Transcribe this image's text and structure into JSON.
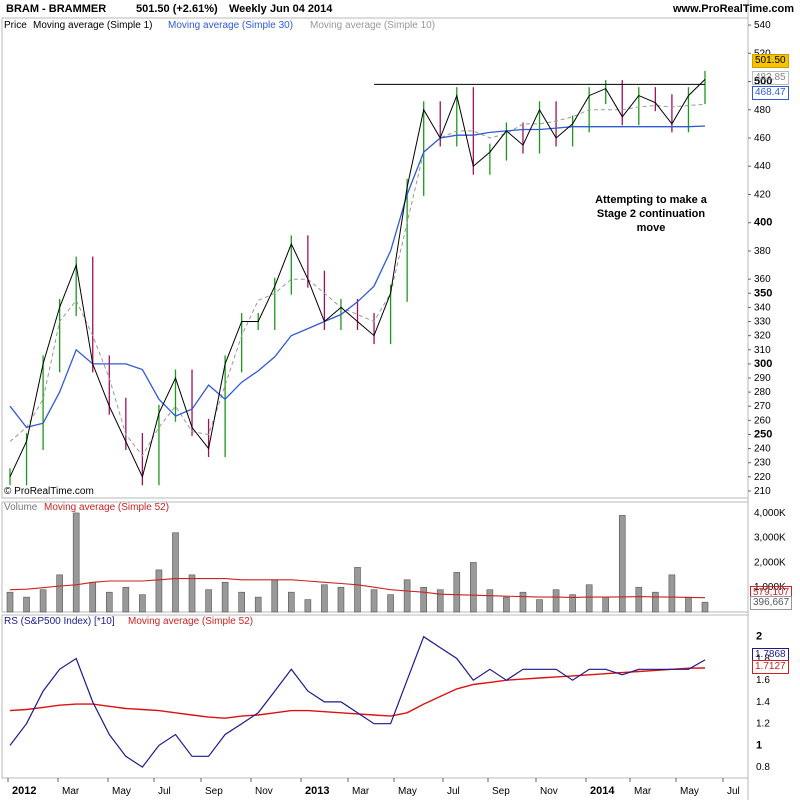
{
  "header": {
    "symbol": "BRAM - BRAMMER",
    "quote": "501.50 (+2.61%)",
    "period": "Weekly",
    "date": "Jun 04 2014",
    "site": "www.ProRealTime.com"
  },
  "price_panel": {
    "legend": [
      "Price",
      "Moving average (Simple 1)",
      "Moving average (Simple 30)",
      "Moving average (Simple 10)"
    ],
    "copyright": "© ProRealTime.com",
    "annotation": [
      "Attempting to make a",
      "Stage 2 continuation",
      "move"
    ],
    "badges": [
      {
        "text": "501.50",
        "bg": "#f5c400",
        "fg": "#000000"
      },
      {
        "text": "483.85",
        "bg": "#ffffff",
        "fg": "#888888"
      },
      {
        "text": "468.47",
        "bg": "#ffffff",
        "fg": "#2f5bd6"
      }
    ]
  },
  "volume_panel": {
    "legend": [
      "Volume",
      "Moving average (Simple 52)"
    ],
    "badges": [
      {
        "text": "579,107",
        "bg": "#ffffff",
        "fg": "#cc2222"
      },
      {
        "text": "396,667",
        "bg": "#ffffff",
        "fg": "#555555"
      }
    ]
  },
  "rs_panel": {
    "legend": [
      "RS (S&P500 Index) [*10]",
      "Moving average (Simple 52)"
    ],
    "badges": [
      {
        "text": "1.7868",
        "bg": "#ffffff",
        "fg": "#1a1a8c"
      },
      {
        "text": "1.7127",
        "bg": "#ffffff",
        "fg": "#cc2222"
      }
    ]
  },
  "x_axis": {
    "labels": [
      {
        "text": "2012",
        "bold": true
      },
      {
        "text": "Mar",
        "bold": false
      },
      {
        "text": "May",
        "bold": false
      },
      {
        "text": "Jul",
        "bold": false
      },
      {
        "text": "Sep",
        "bold": false
      },
      {
        "text": "Nov",
        "bold": false
      },
      {
        "text": "2013",
        "bold": true
      },
      {
        "text": "Mar",
        "bold": false
      },
      {
        "text": "May",
        "bold": false
      },
      {
        "text": "Jul",
        "bold": false
      },
      {
        "text": "Sep",
        "bold": false
      },
      {
        "text": "Nov",
        "bold": false
      },
      {
        "text": "2014",
        "bold": true
      },
      {
        "text": "Mar",
        "bold": false
      },
      {
        "text": "May",
        "bold": false
      },
      {
        "text": "Jul",
        "bold": false
      }
    ]
  },
  "colors": {
    "up": "#1a9a1a",
    "down": "#a0105a",
    "close_line": "#000000",
    "ma30": "#2f5bd6",
    "ma10": "#999999",
    "volume": "#999999",
    "vol_ma": "#cc2222",
    "rs": "#1a1a8c",
    "rs_ma": "#dd1111",
    "highlight": "#f5c400"
  },
  "chart_data": [
    {
      "type": "line",
      "title": "BRAM - BRAMMER Weekly",
      "x": [
        "2012-01-06",
        "2012-01-27",
        "2012-02-17",
        "2012-03-09",
        "2012-03-30",
        "2012-04-20",
        "2012-05-11",
        "2012-06-01",
        "2012-06-22",
        "2012-07-13",
        "2012-08-03",
        "2012-08-24",
        "2012-09-14",
        "2012-10-05",
        "2012-10-26",
        "2012-11-16",
        "2012-12-07",
        "2012-12-28",
        "2013-01-18",
        "2013-02-08",
        "2013-03-01",
        "2013-03-22",
        "2013-04-12",
        "2013-05-03",
        "2013-05-24",
        "2013-06-14",
        "2013-07-05",
        "2013-07-26",
        "2013-08-16",
        "2013-09-06",
        "2013-09-27",
        "2013-10-18",
        "2013-11-08",
        "2013-11-29",
        "2013-12-20",
        "2014-01-10",
        "2014-01-31",
        "2014-02-21",
        "2014-03-14",
        "2014-04-04",
        "2014-04-25",
        "2014-05-16",
        "2014-06-04"
      ],
      "series": [
        {
          "name": "Price",
          "values": [
            220,
            245,
            300,
            340,
            370,
            300,
            270,
            245,
            220,
            265,
            290,
            255,
            240,
            300,
            330,
            330,
            355,
            385,
            360,
            330,
            340,
            330,
            320,
            350,
            425,
            480,
            460,
            490,
            440,
            450,
            465,
            455,
            480,
            460,
            470,
            490,
            495,
            475,
            490,
            485,
            470,
            490,
            501.5
          ]
        },
        {
          "name": "Moving average (Simple 30)",
          "values": [
            270,
            255,
            258,
            280,
            310,
            300,
            300,
            300,
            296,
            275,
            263,
            268,
            285,
            275,
            287,
            295,
            305,
            320,
            325,
            330,
            335,
            344,
            355,
            380,
            420,
            450,
            460,
            462,
            462,
            464,
            465,
            466,
            466,
            467,
            468,
            468,
            468,
            468,
            468,
            468,
            468,
            468,
            468.47
          ]
        },
        {
          "name": "Moving average (Simple 10)",
          "values": [
            245,
            255,
            275,
            330,
            345,
            320,
            290,
            250,
            235,
            255,
            270,
            252,
            250,
            285,
            320,
            345,
            350,
            360,
            360,
            350,
            340,
            335,
            330,
            350,
            400,
            450,
            460,
            465,
            465,
            460,
            463,
            470,
            470,
            472,
            475,
            480,
            480,
            480,
            482,
            483,
            482,
            483,
            483.85
          ]
        }
      ],
      "ylim": [
        205,
        545
      ],
      "yticks": [
        210,
        220,
        230,
        240,
        250,
        260,
        270,
        280,
        290,
        300,
        310,
        320,
        330,
        340,
        350,
        360,
        380,
        400,
        420,
        440,
        460,
        480,
        500,
        520,
        540
      ],
      "resistance": 498
    },
    {
      "type": "bar",
      "title": "Volume",
      "series": [
        {
          "name": "Volume",
          "values": [
            800000,
            600000,
            900000,
            1500000,
            4000000,
            1200000,
            800000,
            1000000,
            700000,
            1700000,
            3200000,
            1500000,
            900000,
            1200000,
            800000,
            600000,
            1300000,
            800000,
            500000,
            1100000,
            1000000,
            1800000,
            900000,
            700000,
            1300000,
            1000000,
            900000,
            1600000,
            2000000,
            900000,
            600000,
            800000,
            500000,
            900000,
            700000,
            1100000,
            600000,
            3900000,
            1000000,
            800000,
            1500000,
            600000,
            396667
          ]
        },
        {
          "name": "Moving average (Simple 52)",
          "values": [
            900000,
            920000,
            980000,
            1050000,
            1100000,
            1200000,
            1250000,
            1250000,
            1250000,
            1300000,
            1350000,
            1350000,
            1350000,
            1350000,
            1300000,
            1300000,
            1300000,
            1300000,
            1250000,
            1200000,
            1150000,
            1100000,
            1000000,
            900000,
            850000,
            800000,
            720000,
            700000,
            680000,
            660000,
            640000,
            620000,
            600000,
            600000,
            590000,
            600000,
            600000,
            610000,
            620000,
            610000,
            600000,
            590000,
            579107
          ]
        }
      ],
      "ylim": [
        0,
        4200000
      ],
      "yticks": [
        "1,000K",
        "2,000K",
        "3,000K",
        "4,000K"
      ]
    },
    {
      "type": "line",
      "title": "RS (S&P500 Index) [*10]",
      "series": [
        {
          "name": "RS (S&P500 Index) [*10]",
          "values": [
            1.0,
            1.2,
            1.5,
            1.7,
            1.8,
            1.4,
            1.1,
            0.9,
            0.8,
            1.0,
            1.1,
            0.9,
            0.9,
            1.1,
            1.2,
            1.3,
            1.5,
            1.7,
            1.5,
            1.4,
            1.4,
            1.3,
            1.2,
            1.2,
            1.6,
            2.0,
            1.9,
            1.8,
            1.6,
            1.7,
            1.6,
            1.7,
            1.7,
            1.7,
            1.6,
            1.7,
            1.7,
            1.65,
            1.7,
            1.7,
            1.7,
            1.7,
            1.7868
          ]
        },
        {
          "name": "Moving average (Simple 52)",
          "values": [
            1.32,
            1.33,
            1.35,
            1.37,
            1.38,
            1.38,
            1.36,
            1.34,
            1.33,
            1.32,
            1.3,
            1.28,
            1.26,
            1.25,
            1.27,
            1.28,
            1.3,
            1.32,
            1.32,
            1.31,
            1.3,
            1.29,
            1.28,
            1.27,
            1.3,
            1.38,
            1.45,
            1.52,
            1.56,
            1.58,
            1.6,
            1.61,
            1.62,
            1.63,
            1.64,
            1.65,
            1.66,
            1.67,
            1.68,
            1.69,
            1.7,
            1.71,
            1.7127
          ]
        }
      ],
      "ylim": [
        0.7,
        2.2
      ],
      "yticks": [
        0.8,
        1,
        1.2,
        1.4,
        1.6,
        1.8,
        2
      ]
    }
  ]
}
